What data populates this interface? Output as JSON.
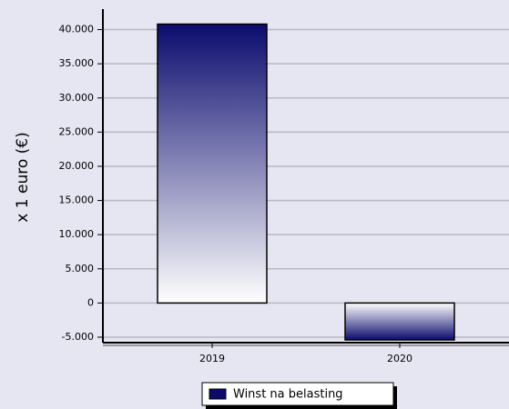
{
  "chart_data": {
    "type": "bar",
    "ylabel": "x 1 euro (€)",
    "categories": [
      "2019",
      "2020"
    ],
    "series": [
      {
        "name": "Winst na belasting",
        "color": "#0b0b6e",
        "values": [
          40800,
          -5400
        ]
      }
    ],
    "ylim": [
      -5800,
      43000
    ],
    "yticks": [
      {
        "value": -5000,
        "label": "-5.000"
      },
      0,
      {
        "value": 5000,
        "label": "5.000"
      },
      {
        "value": 10000,
        "label": "10.000"
      },
      {
        "value": 15000,
        "label": "15.000"
      },
      {
        "value": 20000,
        "label": "20.000"
      },
      {
        "value": 25000,
        "label": "25.000"
      },
      {
        "value": 30000,
        "label": "30.000"
      },
      {
        "value": 35000,
        "label": "35.000"
      },
      {
        "value": 40000,
        "label": "40.000"
      }
    ],
    "grid": true,
    "legend": "bottom"
  }
}
